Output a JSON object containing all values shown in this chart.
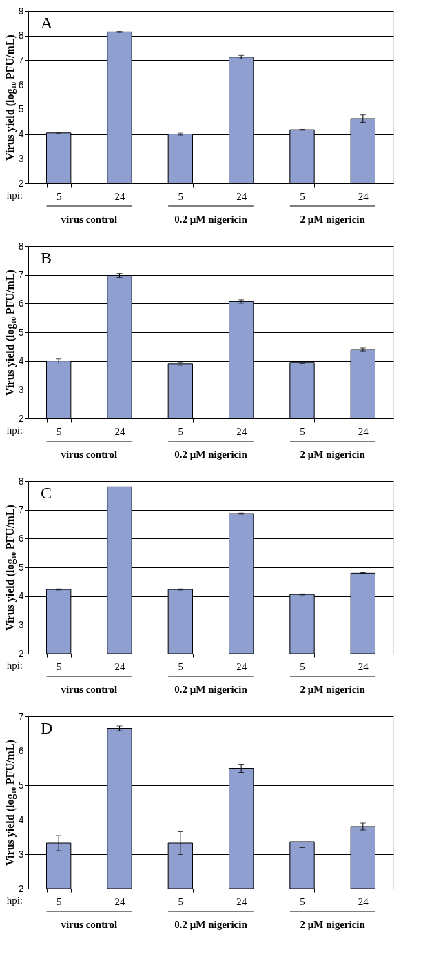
{
  "chart_data": [
    {
      "type": "bar",
      "title": "A",
      "ylabel": "Virus yield (log₁₀ PFU/mL)",
      "categories": [
        "5",
        "24",
        "5",
        "24",
        "5",
        "24"
      ],
      "values": [
        4.05,
        8.15,
        4.0,
        7.13,
        4.18,
        4.63
      ],
      "errors": [
        0.03,
        0.02,
        0.04,
        0.07,
        0.02,
        0.15
      ],
      "color": "#8f9fd0",
      "ylim": [
        2,
        9
      ],
      "yticks": [
        2,
        3,
        4,
        5,
        6,
        7,
        8,
        9
      ],
      "grid": "y",
      "annotations": [
        "hpi:",
        "virus control",
        "0.2 μM nigericin",
        "2 μM nigericin"
      ]
    },
    {
      "type": "bar",
      "title": "B",
      "ylabel": "Virus yield (log₁₀ PFU/mL)",
      "categories": [
        "5",
        "24",
        "5",
        "24",
        "5",
        "24"
      ],
      "values": [
        4.0,
        6.98,
        3.9,
        6.07,
        3.95,
        4.4
      ],
      "errors": [
        0.07,
        0.07,
        0.05,
        0.06,
        0.04,
        0.05
      ],
      "color": "#8f9fd0",
      "ylim": [
        2,
        8
      ],
      "yticks": [
        2,
        3,
        4,
        5,
        6,
        7,
        8
      ],
      "grid": "y",
      "annotations": [
        "hpi:",
        "virus control",
        "0.2 μM nigericin",
        "2 μM nigericin"
      ]
    },
    {
      "type": "bar",
      "title": "C",
      "ylabel": "Virus yield (log₁₀ PFU/mL)",
      "categories": [
        "5",
        "24",
        "5",
        "24",
        "5",
        "24"
      ],
      "values": [
        4.23,
        7.8,
        4.23,
        6.87,
        4.06,
        4.8
      ],
      "errors": [
        0.02,
        null,
        0.02,
        0.02,
        0.02,
        0.02
      ],
      "color": "#8f9fd0",
      "ylim": [
        2,
        8
      ],
      "yticks": [
        2,
        3,
        4,
        5,
        6,
        7,
        8
      ],
      "grid": "y",
      "annotations": [
        "hpi:",
        "virus control",
        "0.2 μM nigericin",
        "2 μM nigericin"
      ]
    },
    {
      "type": "bar",
      "title": "D",
      "ylabel": "Virus yield (log₁₀ PFU/mL)",
      "categories": [
        "5",
        "24",
        "5",
        "24",
        "5",
        "24"
      ],
      "values": [
        3.32,
        6.65,
        3.32,
        5.49,
        3.36,
        3.8
      ],
      "errors": [
        0.22,
        0.07,
        0.33,
        0.12,
        0.17,
        0.1
      ],
      "color": "#8f9fd0",
      "ylim": [
        2,
        7
      ],
      "yticks": [
        2,
        3,
        4,
        5,
        6,
        7
      ],
      "grid": "y",
      "annotations": [
        "hpi:",
        "virus control",
        "0.2 μM nigericin",
        "2 μM nigericin"
      ]
    }
  ]
}
